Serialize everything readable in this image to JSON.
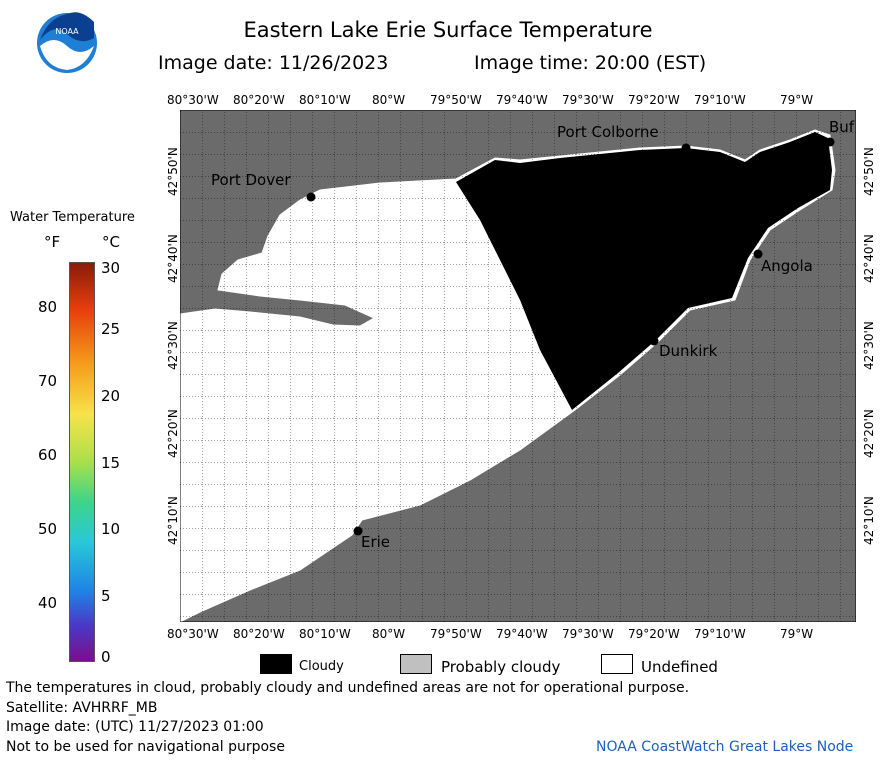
{
  "header": {
    "title": "Eastern Lake Erie Surface Temperature",
    "image_date": "Image date: 11/26/2023",
    "image_time": "Image time: 20:00 (EST)"
  },
  "logo": {
    "text": "NOAA"
  },
  "axes": {
    "lon_labels": [
      "80°30'W",
      "80°20'W",
      "80°10'W",
      "80°W",
      "79°50'W",
      "79°40'W",
      "79°30'W",
      "79°20'W",
      "79°10'W",
      "79°W"
    ],
    "lat_labels": [
      "42°50'N",
      "42°40'N",
      "42°30'N",
      "42°20'N",
      "42°10'N"
    ]
  },
  "places": [
    {
      "name": "Port Colborne"
    },
    {
      "name": "Port Dover"
    },
    {
      "name": "Buf"
    },
    {
      "name": "Angola"
    },
    {
      "name": "Dunkirk"
    },
    {
      "name": "Erie"
    }
  ],
  "colorbar": {
    "title": "Water Temperature",
    "unit_f": "°F",
    "unit_c": "°C",
    "f_ticks": [
      "80",
      "70",
      "60",
      "50",
      "40"
    ],
    "c_ticks": [
      "30",
      "25",
      "20",
      "15",
      "10",
      "5",
      "0"
    ]
  },
  "key": {
    "cloudy": "Cloudy",
    "probably_cloudy": "Probably cloudy",
    "undefined": "Undefined",
    "colors": {
      "cloudy": "#000000",
      "probably_cloudy": "#c0c0c0",
      "undefined": "#ffffff",
      "land": "#6b6b6b"
    }
  },
  "footer": {
    "note": "The temperatures in cloud, probably cloudy and undefined areas are not for operational purpose.",
    "satellite": "Satellite: AVHRRF_MB",
    "utc": "Image date: (UTC) 11/27/2023  01:00",
    "nav": "Not to be used for navigational purpose",
    "credit": "NOAA CoastWatch Great Lakes Node",
    "credit_color": "#1f5fbf"
  }
}
